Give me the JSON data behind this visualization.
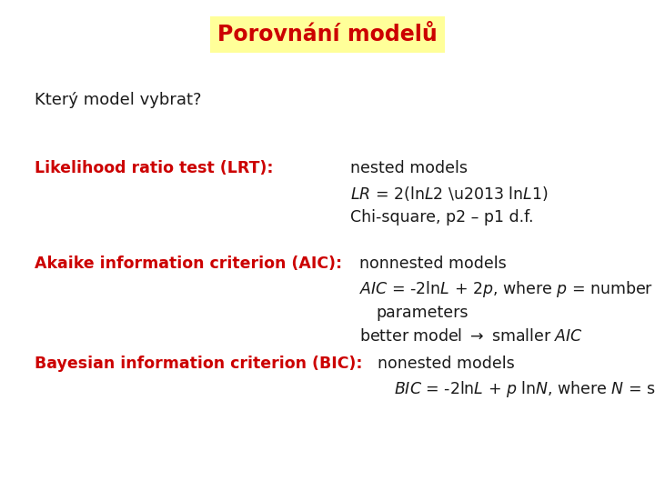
{
  "title": "Porovnání modelů",
  "title_color": "#cc0000",
  "title_bg": "#ffff99",
  "bg_color": "#ffffff",
  "subtitle": "Který model vybrat?",
  "lrt_label": "Likelihood ratio test (LRT):",
  "aic_label": "Akaike information criterion (AIC):",
  "bic_label": "Bayesian information criterion (BIC):",
  "red_color": "#cc0000",
  "black_color": "#1a1a1a",
  "label_fontsize": 12.5,
  "text_fontsize": 12.5,
  "subtitle_fontsize": 13
}
